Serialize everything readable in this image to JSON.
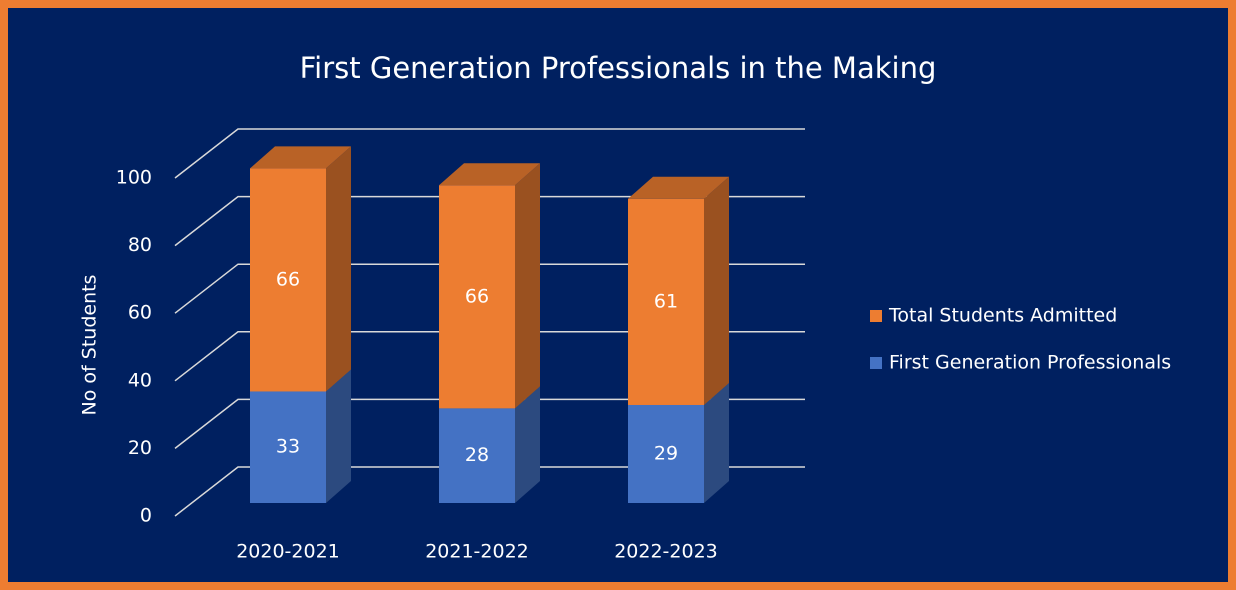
{
  "chart_data": {
    "type": "bar3d_stacked",
    "title": "First Generation Professionals in the Making",
    "y_label": "No of Students",
    "categories": [
      "2020-2021",
      "2021-2022",
      "2022-2023"
    ],
    "series": [
      {
        "name": "First Generation Professionals",
        "color": "#4472c4",
        "values": [
          33,
          28,
          29
        ]
      },
      {
        "name": "Total Students Admitted",
        "color": "#ed7d31",
        "values": [
          66,
          66,
          61
        ]
      }
    ],
    "ylim": [
      0,
      100
    ],
    "yticks": [
      0,
      20,
      40,
      60,
      80,
      100
    ],
    "grid": true,
    "legend": "right"
  }
}
